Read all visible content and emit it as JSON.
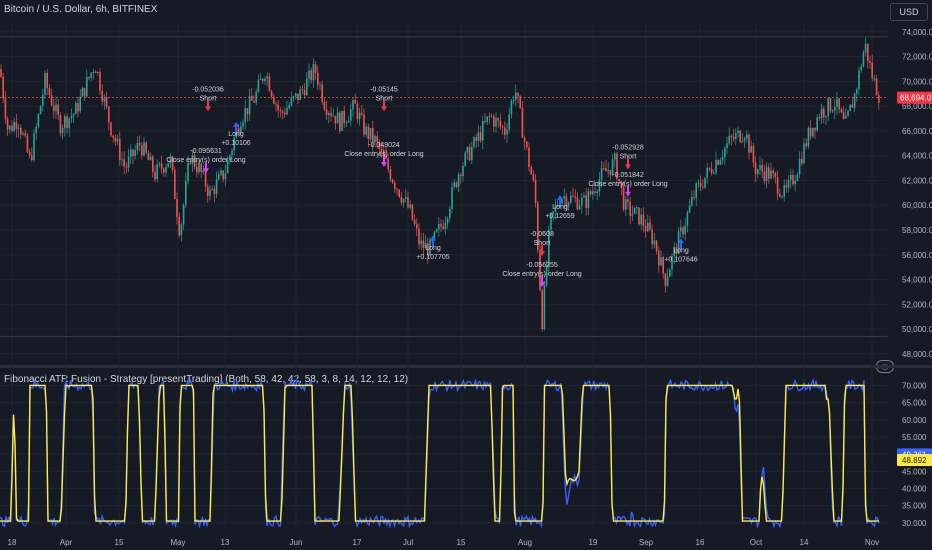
{
  "header": {
    "symbol": "Bitcoin / U.S. Dollar, 6h, BITFINEX",
    "currency_button": "USD",
    "indicator_title": "Fibonacci ATR Fusion - Strategy [presentTrading] (Both, 58, 42, 42, 58, 3, 8, 14, 12, 12, 12)",
    "settings_icon": "eye-settings-icon"
  },
  "colors": {
    "background": "#161a25",
    "up": "#26a69a",
    "down": "#ef5350",
    "grid": "#1f2430",
    "axis_text": "#b2b5be",
    "signal_red": "#f23645",
    "signal_blue": "#2962ff",
    "osc_blue": "#3861ff",
    "osc_yellow": "#ffeb3b",
    "price_badge": "#f23645"
  },
  "chart_data": [
    {
      "type": "candlestick",
      "title": "Bitcoin / U.S. Dollar, 6h, BITFINEX",
      "x_labels": [
        "18",
        "Apr",
        "15",
        "May",
        "13",
        "Jun",
        "17",
        "Jul",
        "15",
        "Aug",
        "19",
        "Sep",
        "16",
        "Oct",
        "14",
        "Nov"
      ],
      "y_ticks": [
        "74,000.0",
        "72,000.0",
        "70,000.0",
        "68,000.0",
        "66,000.0",
        "64,000.0",
        "62,000.0",
        "60,000.0",
        "58,000.0",
        "56,000.0",
        "54,000.0",
        "52,000.0",
        "50,000.0",
        "48,000.0"
      ],
      "ylim": [
        47500,
        74800
      ],
      "last_price": "68,694.0",
      "last_price_value": 68694,
      "close_path": [
        [
          0,
          71000
        ],
        [
          8,
          66000
        ],
        [
          18,
          67000
        ],
        [
          30,
          63500
        ],
        [
          45,
          70000
        ],
        [
          60,
          66500
        ],
        [
          75,
          67500
        ],
        [
          95,
          71500
        ],
        [
          110,
          66500
        ],
        [
          125,
          63000
        ],
        [
          140,
          65000
        ],
        [
          155,
          62500
        ],
        [
          170,
          63800
        ],
        [
          180,
          57800
        ],
        [
          190,
          64000
        ],
        [
          200,
          62800
        ],
        [
          210,
          60900
        ],
        [
          225,
          62700
        ],
        [
          240,
          67000
        ],
        [
          255,
          68700
        ],
        [
          265,
          70900
        ],
        [
          280,
          67300
        ],
        [
          300,
          69000
        ],
        [
          315,
          71000
        ],
        [
          325,
          68200
        ],
        [
          340,
          66700
        ],
        [
          355,
          68000
        ],
        [
          365,
          66000
        ],
        [
          375,
          65200
        ],
        [
          385,
          63500
        ],
        [
          395,
          61800
        ],
        [
          410,
          59500
        ],
        [
          420,
          56800
        ],
        [
          430,
          56500
        ],
        [
          445,
          59000
        ],
        [
          460,
          63000
        ],
        [
          475,
          65000
        ],
        [
          490,
          67200
        ],
        [
          505,
          66000
        ],
        [
          515,
          69500
        ],
        [
          525,
          65000
        ],
        [
          535,
          61000
        ],
        [
          542,
          50500
        ],
        [
          550,
          58500
        ],
        [
          560,
          60800
        ],
        [
          572,
          60500
        ],
        [
          585,
          60200
        ],
        [
          600,
          62200
        ],
        [
          615,
          63500
        ],
        [
          625,
          59800
        ],
        [
          640,
          59000
        ],
        [
          655,
          57000
        ],
        [
          665,
          54000
        ],
        [
          680,
          57500
        ],
        [
          695,
          61000
        ],
        [
          715,
          63500
        ],
        [
          730,
          65200
        ],
        [
          745,
          66000
        ],
        [
          755,
          63000
        ],
        [
          770,
          62500
        ],
        [
          785,
          60800
        ],
        [
          795,
          62500
        ],
        [
          810,
          66000
        ],
        [
          820,
          67500
        ],
        [
          835,
          68300
        ],
        [
          845,
          66300
        ],
        [
          855,
          69000
        ],
        [
          865,
          73000
        ],
        [
          872,
          70500
        ],
        [
          880,
          68694
        ]
      ],
      "annotations": [
        {
          "text": [
            "-0.052036",
            "Short"
          ],
          "x": 208,
          "y": 69200,
          "kind": "short"
        },
        {
          "text": [
            "-0.095631",
            "Close entry(s) order Long"
          ],
          "x": 206,
          "y": 64200,
          "kind": "close"
        },
        {
          "text": [
            "Long",
            "+0.10106"
          ],
          "x": 236,
          "y": 65600,
          "kind": "long"
        },
        {
          "text": [
            "-0.05145",
            "Short"
          ],
          "x": 384,
          "y": 69200,
          "kind": "short"
        },
        {
          "text": [
            "-0.049024",
            "Close entry(s) order Long"
          ],
          "x": 384,
          "y": 64700,
          "kind": "close"
        },
        {
          "text": [
            "Long",
            "+0.107705"
          ],
          "x": 433,
          "y": 56400,
          "kind": "long"
        },
        {
          "text": [
            "Long",
            "+0.12659"
          ],
          "x": 560,
          "y": 59700,
          "kind": "long"
        },
        {
          "text": [
            "-0.0608",
            "Short"
          ],
          "x": 542,
          "y": 57500,
          "kind": "short"
        },
        {
          "text": [
            "-0.056255",
            "Close entry(s) order Long"
          ],
          "x": 542,
          "y": 55000,
          "kind": "close"
        },
        {
          "text": [
            "-0.052928",
            "Short"
          ],
          "x": 628,
          "y": 64500,
          "kind": "short"
        },
        {
          "text": [
            "-0.051842",
            "Close entry(s) order Long"
          ],
          "x": 628,
          "y": 62300,
          "kind": "close"
        },
        {
          "text": [
            "Long",
            "+0.107646"
          ],
          "x": 681,
          "y": 56200,
          "kind": "long"
        }
      ],
      "horizontal_lines": [
        73600,
        68694,
        49400
      ]
    },
    {
      "type": "line",
      "title": "Fibonacci ATR Fusion - Strategy [presentTrading] (Both, 58, 42, 42, 58, 3, 8, 14, 12, 12, 12)",
      "y_ticks": [
        "70.000",
        "65.000",
        "60.000",
        "55.000",
        "50.000",
        "45.000",
        "40.000",
        "35.000",
        "30.000"
      ],
      "ylim": [
        28.5,
        71
      ],
      "series": [
        {
          "color": "blue",
          "last": "49.361"
        },
        {
          "color": "yellow",
          "last": "48.892"
        }
      ]
    }
  ]
}
